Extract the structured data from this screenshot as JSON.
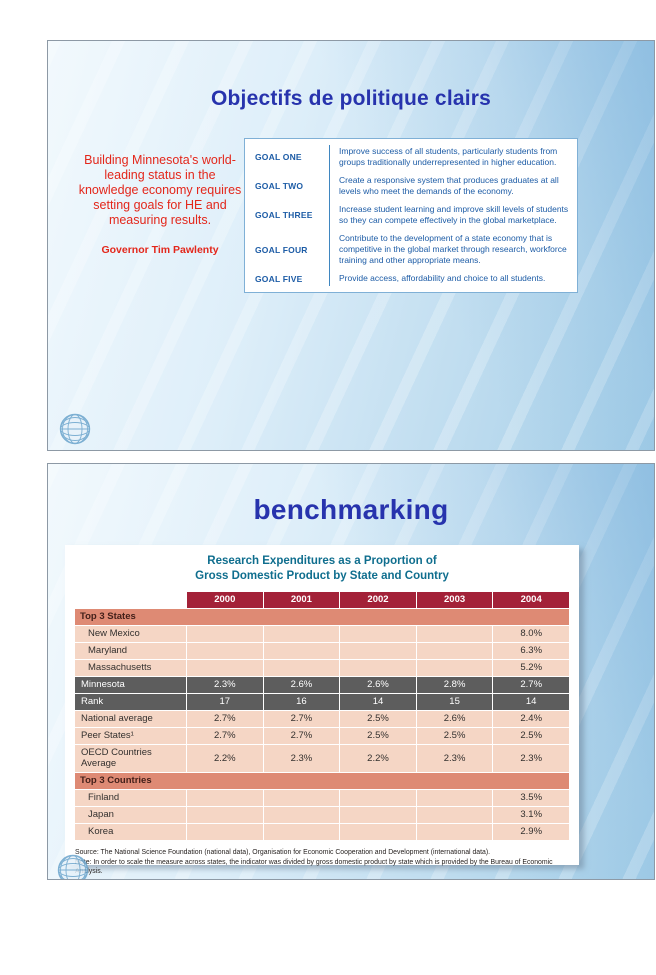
{
  "slide1": {
    "title": "Objectifs de politique clairs",
    "quote": {
      "text": "Building Minnesota's world-leading status in the knowledge economy requires setting goals for HE and measuring results.",
      "attribution": "Governor Tim Pawlenty"
    },
    "goals": [
      {
        "label": "GOAL ONE",
        "text": "Improve success of all students, particularly students from groups traditionally underrepresented in higher education."
      },
      {
        "label": "GOAL TWO",
        "text": "Create a responsive system that produces graduates at all levels who meet the demands of the economy."
      },
      {
        "label": "GOAL THREE",
        "text": "Increase student learning and improve skill levels of students so they can compete effectively in the global marketplace."
      },
      {
        "label": "GOAL FOUR",
        "text": "Contribute to the development of a state economy that is competitive in the global market through research, workforce training and other appropriate means."
      },
      {
        "label": "GOAL FIVE",
        "text": "Provide access, affordability and choice to all students."
      }
    ]
  },
  "slide2": {
    "title": "benchmarking",
    "table": {
      "title_line1": "Research Expenditures as a Proportion of",
      "title_line2": "Gross Domestic Product by State and Country",
      "columns": [
        "2000",
        "2001",
        "2002",
        "2003",
        "2004"
      ],
      "rows": [
        {
          "type": "section",
          "label": "Top 3 States",
          "values": [
            "",
            "",
            "",
            "",
            ""
          ]
        },
        {
          "type": "data",
          "indent": true,
          "label": "New Mexico",
          "values": [
            "",
            "",
            "",
            "",
            "8.0%"
          ]
        },
        {
          "type": "data",
          "indent": true,
          "label": "Maryland",
          "values": [
            "",
            "",
            "",
            "",
            "6.3%"
          ]
        },
        {
          "type": "data",
          "indent": true,
          "label": "Massachusetts",
          "values": [
            "",
            "",
            "",
            "",
            "5.2%"
          ]
        },
        {
          "type": "highlight",
          "label": "Minnesota",
          "values": [
            "2.3%",
            "2.6%",
            "2.6%",
            "2.8%",
            "2.7%"
          ]
        },
        {
          "type": "highlight",
          "label": "Rank",
          "values": [
            "17",
            "16",
            "14",
            "15",
            "14"
          ]
        },
        {
          "type": "data",
          "label": "National average",
          "values": [
            "2.7%",
            "2.7%",
            "2.5%",
            "2.6%",
            "2.4%"
          ]
        },
        {
          "type": "data",
          "label": "Peer States¹",
          "values": [
            "2.7%",
            "2.7%",
            "2.5%",
            "2.5%",
            "2.5%"
          ]
        },
        {
          "type": "data",
          "label": "OECD Countries Average",
          "values": [
            "2.2%",
            "2.3%",
            "2.2%",
            "2.3%",
            "2.3%"
          ]
        },
        {
          "type": "section",
          "label": "Top 3 Countries",
          "values": [
            "",
            "",
            "",
            "",
            ""
          ]
        },
        {
          "type": "data",
          "indent": true,
          "label": "Finland",
          "values": [
            "",
            "",
            "",
            "",
            "3.5%"
          ]
        },
        {
          "type": "data",
          "indent": true,
          "label": "Japan",
          "values": [
            "",
            "",
            "",
            "",
            "3.1%"
          ]
        },
        {
          "type": "data",
          "indent": true,
          "label": "Korea",
          "values": [
            "",
            "",
            "",
            "",
            "2.9%"
          ]
        }
      ],
      "source": "Source: The National Science Foundation (national data), Organisation for Economic Cooperation and Development (international data).",
      "note": "Note: In order to scale the measure across states, the indicator was divided by gross domestic product by state which is provided by the Bureau of Economic Analysis."
    }
  }
}
